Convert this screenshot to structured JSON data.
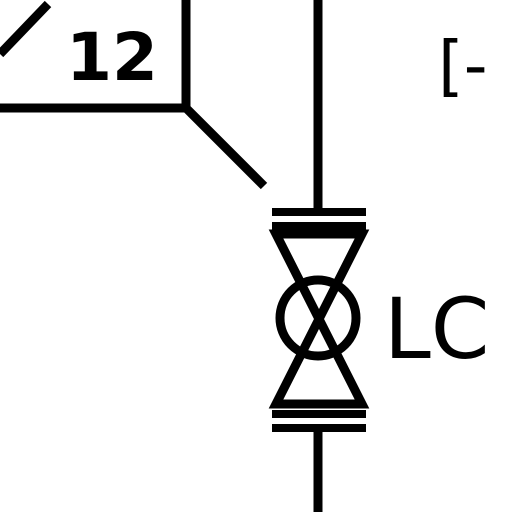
{
  "diagram": {
    "tag_box": {
      "number": "12"
    },
    "valve": {
      "label": "LC"
    },
    "partial_symbol": {
      "text": "[-"
    },
    "line_color": "#000000",
    "background": "#ffffff"
  }
}
